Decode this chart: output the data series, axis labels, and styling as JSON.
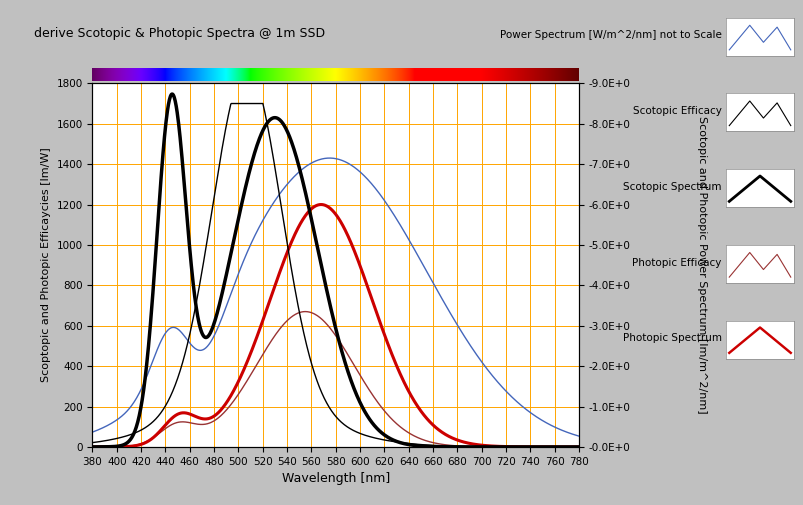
{
  "title": "derive Scotopic & Photopic Spectra @ 1m SSD",
  "xlabel": "Wavelength [nm]",
  "ylabel_left": "Scoptopic and Photopic Efficaycies [lm/W]",
  "ylabel_right": "Scotopic and Photopic Power Spectrum [lm/m^2/nm]",
  "xlim": [
    380,
    780
  ],
  "ylim_left": [
    0,
    1800
  ],
  "ylim_right": [
    0,
    9.0
  ],
  "yticks_left": [
    0,
    200,
    400,
    600,
    800,
    1000,
    1200,
    1400,
    1600,
    1800
  ],
  "yticks_right_vals": [
    0.0,
    1.0,
    2.0,
    3.0,
    4.0,
    5.0,
    6.0,
    7.0,
    8.0,
    9.0
  ],
  "yticks_right_labels": [
    "-0.0E+0",
    "-1.0E+0",
    "-2.0E+0",
    "-3.0E+0",
    "-4.0E+0",
    "-5.0E+0",
    "-6.0E+0",
    "-7.0E+0",
    "-8.0E+0",
    "-9.0E+0"
  ],
  "xticks": [
    380,
    400,
    420,
    440,
    460,
    480,
    500,
    520,
    540,
    560,
    580,
    600,
    620,
    640,
    660,
    680,
    700,
    720,
    740,
    760,
    780
  ],
  "grid_color": "#FFA500",
  "background_color": "#FFFFFF",
  "bg_outside": "#C0C0C0",
  "scotopic_spectrum_color": "#000000",
  "scotopic_efficacy_color": "#000000",
  "photopic_spectrum_color": "#CC0000",
  "photopic_efficacy_color": "#993333",
  "power_spectrum_color": "#4466BB"
}
